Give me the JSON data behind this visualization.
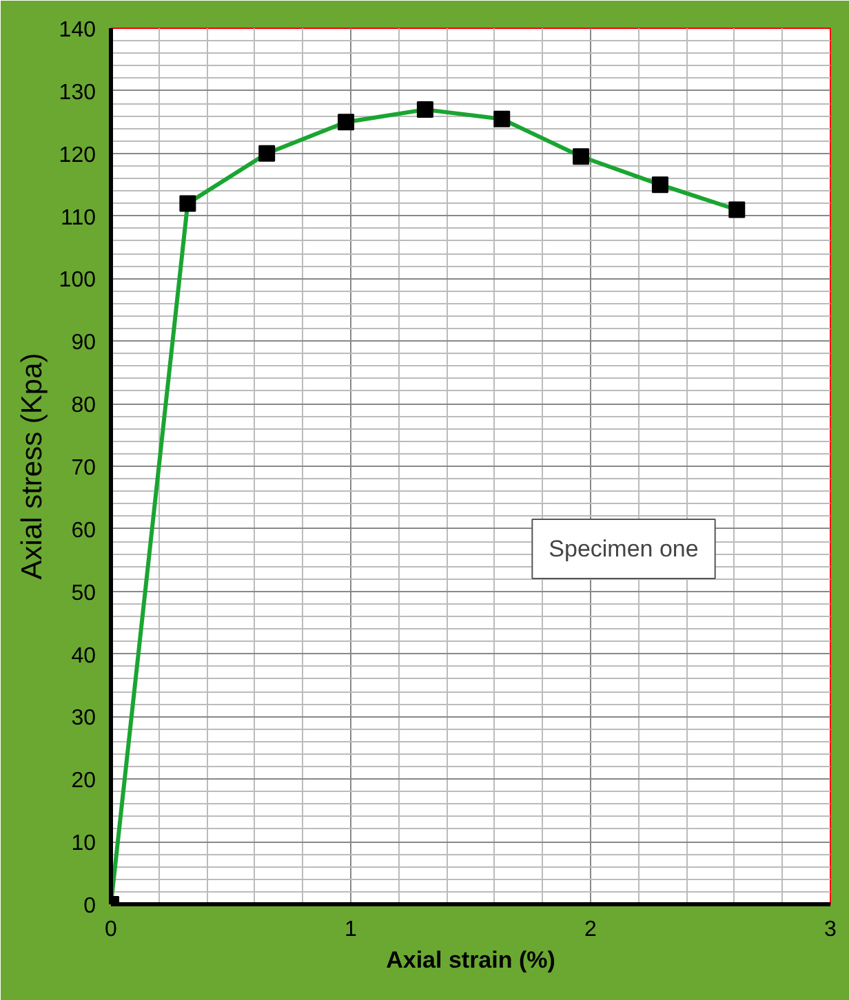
{
  "chart_data": {
    "type": "line",
    "xlabel": "Axial strain (%)",
    "ylabel": "Axial stress (Kpa)",
    "x": [
      0,
      0.32,
      0.65,
      0.98,
      1.31,
      1.63,
      1.96,
      2.29,
      2.61
    ],
    "series": [
      {
        "color": "#1aa531",
        "values": [
          0,
          112,
          120,
          125,
          127,
          125.5,
          119.5,
          115,
          111
        ]
      }
    ],
    "xlim": [
      0,
      3
    ],
    "ylim": [
      0,
      140
    ],
    "xticks": [
      0,
      1,
      2,
      3
    ],
    "yticks": [
      0,
      10,
      20,
      30,
      40,
      50,
      60,
      70,
      80,
      90,
      100,
      110,
      120,
      130,
      140
    ],
    "grid": true,
    "marker": "square",
    "line_style": "solid",
    "annotations": [
      "Specimen one"
    ]
  }
}
